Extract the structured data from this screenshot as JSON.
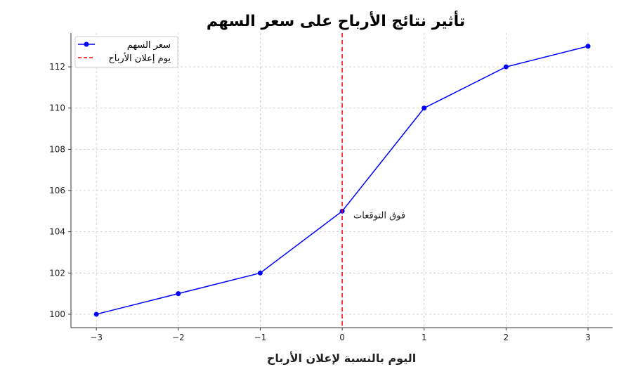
{
  "chart_data": {
    "type": "line",
    "title": "تأثير نتائج الأرباح على سعر السهم",
    "xlabel": "اليوم بالنسبة لإعلان الأرباح",
    "ylabel": "",
    "x": [
      -3,
      -2,
      -1,
      0,
      1,
      2,
      3
    ],
    "series": [
      {
        "name": "سعر السهم",
        "values": [
          100,
          101,
          102,
          105,
          110,
          112,
          113
        ],
        "color": "#0000ff",
        "marker": "circle"
      }
    ],
    "vline": {
      "x": 0,
      "name": "يوم إعلان الأرباح",
      "color": "#ff0000",
      "style": "dashed"
    },
    "annotation": {
      "text": "فوق التوقعات",
      "x": 0,
      "y": 105
    },
    "xticks": [
      -3,
      -2,
      -1,
      0,
      1,
      2,
      3
    ],
    "xtick_labels": [
      "−3",
      "−2",
      "−1",
      "0",
      "1",
      "2",
      "3"
    ],
    "yticks": [
      100,
      102,
      104,
      106,
      108,
      110,
      112
    ],
    "xlim": [
      -3.31,
      3.3
    ],
    "ylim": [
      99.35,
      113.64
    ],
    "grid": true,
    "legend_position": "top-left"
  }
}
